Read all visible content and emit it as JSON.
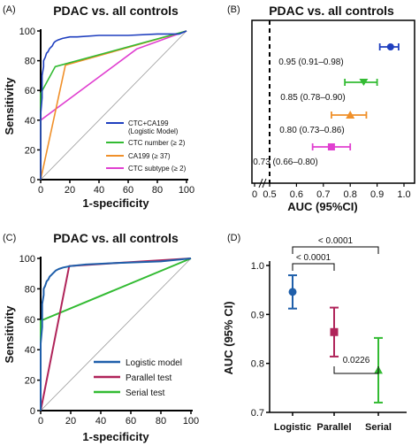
{
  "chart_data": [
    {
      "panel": "(A)",
      "type": "line",
      "title": "PDAC vs. all controls",
      "xlabel": "1-specificity",
      "ylabel": "Sensitivity",
      "xlim": [
        0,
        100
      ],
      "ylim": [
        0,
        100
      ],
      "xticks": [
        "0",
        "20",
        "40",
        "60",
        "80",
        "100"
      ],
      "yticks": [
        "0",
        "20",
        "40",
        "60",
        "80",
        "100"
      ],
      "legend_position": "bottom-right",
      "series": [
        {
          "name": "CTC+CA199 (Logistic Model)",
          "legend_lines": [
            "CTC+CA199",
            "(Logistic Model)"
          ],
          "color": "#1f3fbf",
          "x": [
            0,
            0,
            1,
            1,
            2,
            2,
            3,
            4,
            5,
            6,
            7,
            8,
            9,
            10,
            12,
            15,
            20,
            25,
            40,
            60,
            80,
            95,
            100
          ],
          "y": [
            0,
            44,
            55,
            70,
            76,
            80,
            82,
            85,
            86,
            88,
            89,
            90,
            92,
            93,
            94,
            95,
            96,
            96,
            97,
            97,
            98,
            98,
            100
          ]
        },
        {
          "name": "CTC number (≥ 2)",
          "color": "#33bb33",
          "x": [
            0,
            0,
            10,
            100
          ],
          "y": [
            0,
            58,
            76,
            100
          ]
        },
        {
          "name": "CA199 (≥ 37)",
          "color": "#f0902a",
          "x": [
            0,
            17,
            100
          ],
          "y": [
            0,
            77,
            100
          ]
        },
        {
          "name": "CTC subtype (≥ 2)",
          "color": "#e040d0",
          "x": [
            0,
            0,
            66,
            100
          ],
          "y": [
            0,
            40,
            88,
            100
          ]
        }
      ],
      "reference_line": {
        "x": [
          0,
          100
        ],
        "y": [
          0,
          100
        ],
        "color": "#999999"
      }
    },
    {
      "panel": "(B)",
      "type": "scatter",
      "title": "PDAC vs. all controls",
      "xlabel": "AUC (95%CI)",
      "ylabel": "",
      "xlim": [
        0,
        1.0
      ],
      "axis_break": [
        0.05,
        0.5
      ],
      "xticks": [
        "0",
        "0.5",
        "0.6",
        "0.7",
        "0.8",
        "0.9",
        "1.0"
      ],
      "reference_x": 0.5,
      "points": [
        {
          "auc": 0.95,
          "lo": 0.91,
          "hi": 0.98,
          "label": "0.95 (0.91–0.98)",
          "color": "#1f3fbf",
          "marker": "circle"
        },
        {
          "auc": 0.85,
          "lo": 0.78,
          "hi": 0.9,
          "label": "0.85 (0.78–0.90)",
          "color": "#33bb33",
          "marker": "triangle-down"
        },
        {
          "auc": 0.8,
          "lo": 0.73,
          "hi": 0.86,
          "label": "0.80 (0.73–0.86)",
          "color": "#f0902a",
          "marker": "triangle-up"
        },
        {
          "auc": 0.73,
          "lo": 0.66,
          "hi": 0.8,
          "label": "0.73 (0.66–0.80)",
          "color": "#e040d0",
          "marker": "square"
        }
      ]
    },
    {
      "panel": "(C)",
      "type": "line",
      "title": "PDAC vs. all controls",
      "xlabel": "1-specificity",
      "ylabel": "Sensitivity",
      "xlim": [
        0,
        100
      ],
      "ylim": [
        0,
        100
      ],
      "xticks": [
        "0",
        "20",
        "40",
        "60",
        "80",
        "100"
      ],
      "yticks": [
        "0",
        "20",
        "40",
        "60",
        "80",
        "100"
      ],
      "legend_position": "bottom-right",
      "series": [
        {
          "name": "Logistic model",
          "color": "#1f5faa",
          "x": [
            0,
            0,
            1,
            1,
            2,
            2,
            3,
            4,
            5,
            6,
            7,
            8,
            10,
            12,
            15,
            20,
            30,
            50,
            80,
            100
          ],
          "y": [
            0,
            44,
            55,
            70,
            76,
            80,
            82,
            85,
            86,
            88,
            89,
            90,
            92,
            93,
            94,
            95,
            96,
            97,
            98,
            100
          ]
        },
        {
          "name": "Parallel test",
          "color": "#b0245a",
          "x": [
            0,
            19,
            100
          ],
          "y": [
            0,
            95,
            100
          ]
        },
        {
          "name": "Serial test",
          "color": "#33bb33",
          "x": [
            0,
            0,
            100
          ],
          "y": [
            0,
            59,
            100
          ]
        }
      ],
      "reference_line": {
        "x": [
          0,
          100
        ],
        "y": [
          0,
          100
        ],
        "color": "#999999"
      }
    },
    {
      "panel": "(D)",
      "type": "scatter",
      "title": "",
      "xlabel": "",
      "ylabel": "AUC (95% CI)",
      "ylim": [
        0.7,
        1.0
      ],
      "yticks": [
        "0.7",
        "0.8",
        "0.9",
        "1.0"
      ],
      "categories": [
        "Logistic",
        "Parallel",
        "Serial"
      ],
      "points": [
        {
          "category": "Logistic",
          "auc": 0.946,
          "lo": 0.912,
          "hi": 0.98,
          "color": "#1f5faa",
          "marker": "circle"
        },
        {
          "category": "Parallel",
          "auc": 0.864,
          "lo": 0.814,
          "hi": 0.914,
          "color": "#b0245a",
          "marker": "square"
        },
        {
          "category": "Serial",
          "auc": 0.786,
          "lo": 0.72,
          "hi": 0.852,
          "color": "#33bb33",
          "marker": "triangle-up"
        }
      ],
      "comparisons": [
        {
          "from": "Logistic",
          "to": "Serial",
          "label": "< 0.0001"
        },
        {
          "from": "Logistic",
          "to": "Parallel",
          "label": "< 0.0001"
        },
        {
          "from": "Parallel",
          "to": "Serial",
          "label": "0.0226"
        }
      ]
    }
  ]
}
